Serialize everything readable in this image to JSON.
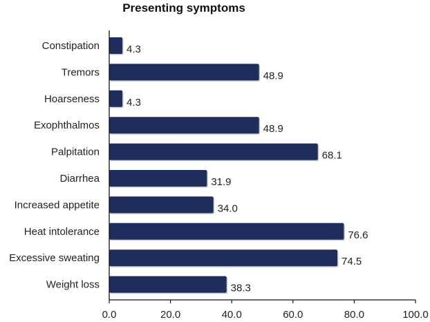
{
  "chart_data": {
    "type": "bar",
    "orientation": "horizontal",
    "title": "Presenting symptoms",
    "xlabel": "",
    "ylabel": "",
    "categories": [
      "Constipation",
      "Tremors",
      "Hoarseness",
      "Exophthalmos",
      "Palpitation",
      "Diarrhea",
      "Increased appetite",
      "Heat intolerance",
      "Excessive sweating",
      "Weight loss"
    ],
    "values": [
      4.3,
      48.9,
      4.3,
      48.9,
      68.1,
      31.9,
      34.0,
      76.6,
      74.5,
      38.3
    ],
    "value_labels": [
      "4.3",
      "48.9",
      "4.3",
      "48.9",
      "68.1",
      "31.9",
      "34.0",
      "76.6",
      "74.5",
      "38.3"
    ],
    "xlim": [
      0,
      100
    ],
    "xticks": [
      0,
      20,
      40,
      60,
      80,
      100
    ],
    "xtick_labels": [
      "0.0",
      "20.0",
      "40.0",
      "60.0",
      "80.0",
      "100.0"
    ],
    "grid": false,
    "bar_color": "#1f2d5c",
    "bar_shadow_color": "#9aa0b0"
  }
}
